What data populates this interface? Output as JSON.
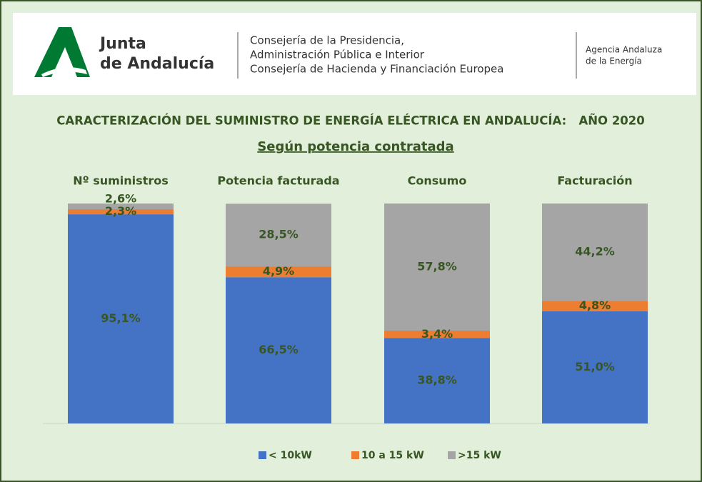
{
  "header": {
    "brand_line1": "Junta",
    "brand_line2": "de Andalucía",
    "dept_line1": "Consejería de la Presidencia,",
    "dept_line2": "Administración Pública e Interior",
    "dept_line3": "Consejería de Hacienda y Financiación Europea",
    "agency_line1": "Agencia Andaluza",
    "agency_line2": "de la Energía"
  },
  "chart_data": {
    "type": "stacked_bar",
    "title": "CARACTERIZACIÓN DEL SUMINISTRO DE ENERGÍA ELÉCTRICA EN ANDALUCÍA:   AÑO 2020",
    "subtitle": "Según potencia contratada",
    "categories": [
      "Nº suministros",
      "Potencia facturada",
      "Consumo",
      "Facturación"
    ],
    "series": [
      {
        "name": "< 10kW",
        "color": "#4472c4",
        "values": [
          95.1,
          66.5,
          38.8,
          51.0
        ],
        "value_labels": [
          "95,1%",
          "66,5%",
          "38,8%",
          "51,0%"
        ]
      },
      {
        "name": "10 a 15 kW",
        "color": "#ed7d31",
        "values": [
          2.3,
          4.9,
          3.4,
          4.8
        ],
        "value_labels": [
          "2,3%",
          "4,9%",
          "3,4%",
          "4,8%"
        ]
      },
      {
        "name": ">15 kW",
        "color": "#a5a5a5",
        "values": [
          2.6,
          28.5,
          57.8,
          44.2
        ],
        "value_labels": [
          "2,6%",
          "28,5%",
          "57,8%",
          "44,2%"
        ]
      }
    ],
    "ylim": [
      0,
      100
    ],
    "legend": "bottom"
  }
}
